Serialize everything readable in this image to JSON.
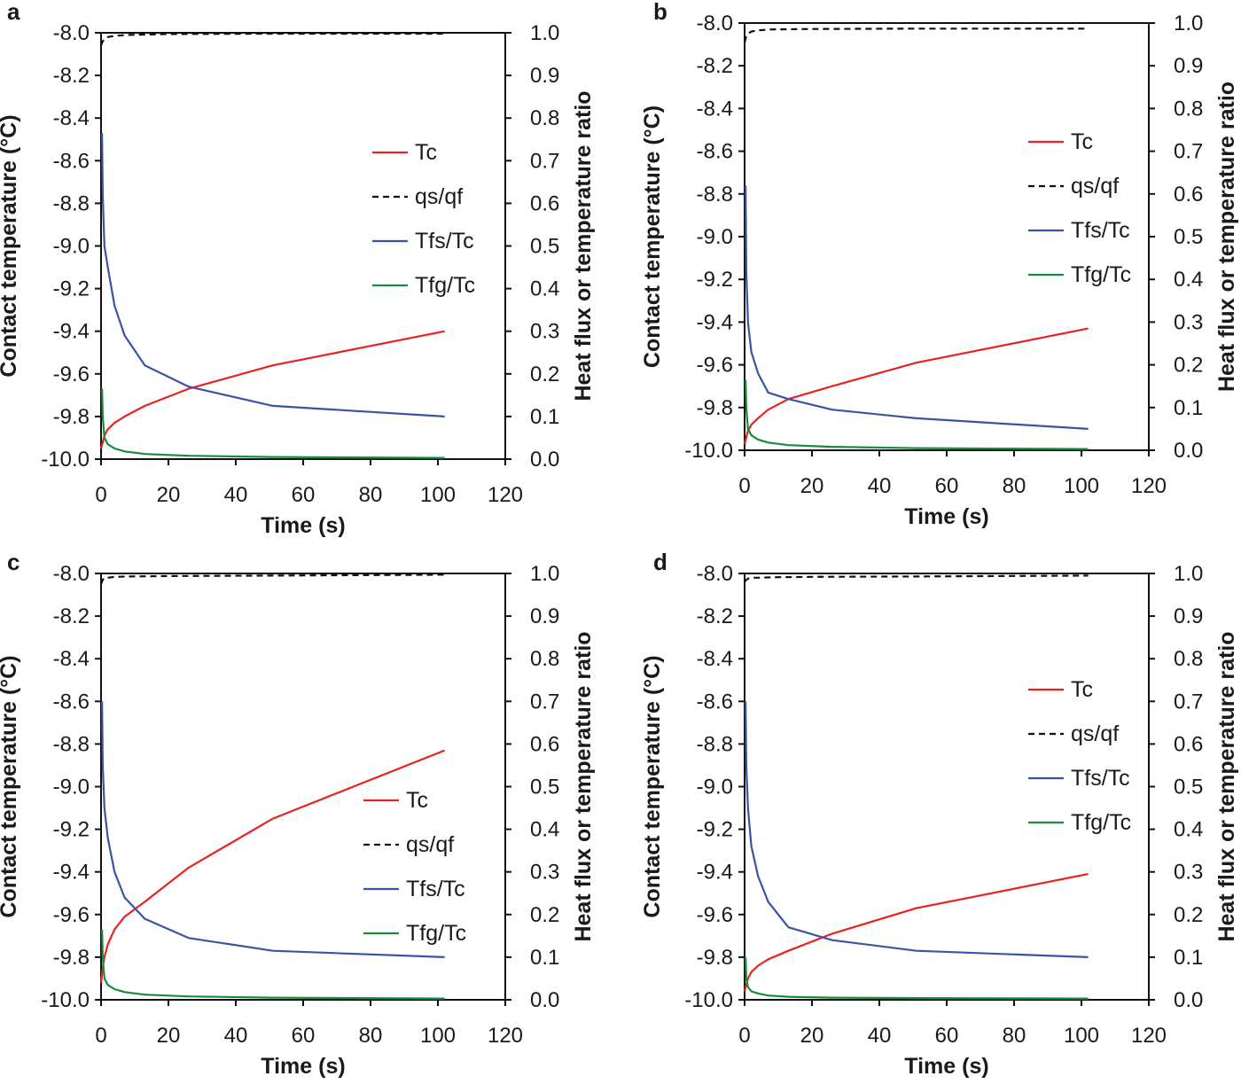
{
  "chart_data": [
    {
      "panel": "a",
      "type": "line",
      "xlabel": "Time (s)",
      "ylabel": "Contact temperature (°C)",
      "ylabel_right": "Heat flux or temperature ratio",
      "xlim": [
        0,
        120
      ],
      "ylim": [
        -10.0,
        -8.0
      ],
      "ylim_right": [
        0.0,
        1.0
      ],
      "xticks": [
        "0",
        "20",
        "40",
        "60",
        "80",
        "100",
        "120"
      ],
      "yticks": [
        "-8.0",
        "-8.2",
        "-8.4",
        "-8.6",
        "-8.8",
        "-9.0",
        "-9.2",
        "-9.4",
        "-9.6",
        "-9.8",
        "-10.0"
      ],
      "yticks_right": [
        "1.0",
        "0.9",
        "0.8",
        "0.7",
        "0.6",
        "0.5",
        "0.4",
        "0.3",
        "0.2",
        "0.1",
        "0.0"
      ],
      "legend": [
        "Tc",
        "qs/qf",
        "Tfs/Tc",
        "Tfg/Tc"
      ],
      "legend_position": "center-right",
      "series": [
        {
          "name": "Tc",
          "axis": "left",
          "color": "#e8231f",
          "dash": false,
          "x": [
            0,
            0.5,
            1,
            2,
            4,
            7,
            13,
            26,
            51,
            102
          ],
          "y": [
            -9.95,
            -9.92,
            -9.89,
            -9.86,
            -9.83,
            -9.8,
            -9.75,
            -9.67,
            -9.56,
            -9.4
          ]
        },
        {
          "name": "qs/qf",
          "axis": "right",
          "color": "#111111",
          "dash": true,
          "x": [
            0,
            0.5,
            1,
            2,
            4,
            8,
            20,
            50,
            102
          ],
          "y": [
            0.97,
            0.98,
            0.985,
            0.99,
            0.993,
            0.995,
            0.997,
            0.998,
            0.998
          ]
        },
        {
          "name": "Tfs/Tc",
          "axis": "right",
          "color": "#3a53a4",
          "dash": false,
          "x": [
            0.3,
            0.5,
            1,
            2,
            4,
            7,
            13,
            26,
            51,
            102
          ],
          "y": [
            0.765,
            0.62,
            0.5,
            0.45,
            0.36,
            0.29,
            0.22,
            0.17,
            0.125,
            0.1
          ]
        },
        {
          "name": "Tfg/Tc",
          "axis": "right",
          "color": "#1a8a3e",
          "dash": false,
          "x": [
            0.3,
            0.5,
            1,
            2,
            4,
            7,
            13,
            26,
            51,
            102
          ],
          "y": [
            0.165,
            0.1,
            0.05,
            0.035,
            0.025,
            0.018,
            0.012,
            0.008,
            0.005,
            0.003
          ]
        }
      ]
    },
    {
      "panel": "b",
      "type": "line",
      "xlabel": "Time (s)",
      "ylabel": "Contact temperature (°C)",
      "ylabel_right": "Heat flux or temperature ratio",
      "xlim": [
        0,
        120
      ],
      "ylim": [
        -10.0,
        -8.0
      ],
      "ylim_right": [
        0.0,
        1.0
      ],
      "xticks": [
        "0",
        "20",
        "40",
        "60",
        "80",
        "100",
        "120"
      ],
      "yticks": [
        "-8.0",
        "-8.2",
        "-8.4",
        "-8.6",
        "-8.8",
        "-9.0",
        "-9.2",
        "-9.4",
        "-9.6",
        "-9.8",
        "-10.0"
      ],
      "yticks_right": [
        "1.0",
        "0.9",
        "0.8",
        "0.7",
        "0.6",
        "0.5",
        "0.4",
        "0.3",
        "0.2",
        "0.1",
        "0.0"
      ],
      "legend": [
        "Tc",
        "qs/qf",
        "Tfs/Tc",
        "Tfg/Tc"
      ],
      "legend_position": "center-right",
      "series": [
        {
          "name": "Tc",
          "axis": "left",
          "color": "#e8231f",
          "dash": false,
          "x": [
            0,
            0.5,
            1,
            2,
            4,
            7,
            13,
            26,
            51,
            102
          ],
          "y": [
            -9.97,
            -9.94,
            -9.91,
            -9.88,
            -9.85,
            -9.81,
            -9.76,
            -9.7,
            -9.59,
            -9.43
          ]
        },
        {
          "name": "qs/qf",
          "axis": "right",
          "color": "#111111",
          "dash": true,
          "x": [
            0,
            0.5,
            1,
            2,
            4,
            8,
            20,
            50,
            102
          ],
          "y": [
            0.955,
            0.97,
            0.975,
            0.98,
            0.983,
            0.985,
            0.986,
            0.987,
            0.987
          ]
        },
        {
          "name": "Tfs/Tc",
          "axis": "right",
          "color": "#3a53a4",
          "dash": false,
          "x": [
            0.3,
            0.5,
            1,
            2,
            4,
            7,
            13,
            26,
            51,
            102
          ],
          "y": [
            0.62,
            0.42,
            0.3,
            0.23,
            0.18,
            0.135,
            0.12,
            0.095,
            0.075,
            0.05
          ]
        },
        {
          "name": "Tfg/Tc",
          "axis": "right",
          "color": "#1a8a3e",
          "dash": false,
          "x": [
            0.3,
            0.5,
            1,
            2,
            4,
            7,
            13,
            26,
            51,
            102
          ],
          "y": [
            0.165,
            0.1,
            0.05,
            0.035,
            0.025,
            0.018,
            0.012,
            0.008,
            0.005,
            0.003
          ]
        }
      ]
    },
    {
      "panel": "c",
      "type": "line",
      "xlabel": "Time (s)",
      "ylabel": "Contact temperature (°C)",
      "ylabel_right": "Heat flux or temperature ratio",
      "xlim": [
        0,
        120
      ],
      "ylim": [
        -10.0,
        -8.0
      ],
      "ylim_right": [
        0.0,
        1.0
      ],
      "xticks": [
        "0",
        "20",
        "40",
        "60",
        "80",
        "100",
        "120"
      ],
      "yticks": [
        "-8.0",
        "-8.2",
        "-8.4",
        "-8.6",
        "-8.8",
        "-9.0",
        "-9.2",
        "-9.4",
        "-9.6",
        "-9.8",
        "-10.0"
      ],
      "yticks_right": [
        "1.0",
        "0.9",
        "0.8",
        "0.7",
        "0.6",
        "0.5",
        "0.4",
        "0.3",
        "0.2",
        "0.1",
        "0.0"
      ],
      "legend": [
        "Tc",
        "qs/qf",
        "Tfs/Tc",
        "Tfg/Tc"
      ],
      "legend_position": "lower-right",
      "series": [
        {
          "name": "Tc",
          "axis": "left",
          "color": "#e8231f",
          "dash": false,
          "x": [
            0,
            0.5,
            1,
            2,
            4,
            7,
            13,
            26,
            51,
            102
          ],
          "y": [
            -9.92,
            -9.85,
            -9.8,
            -9.74,
            -9.67,
            -9.61,
            -9.54,
            -9.38,
            -9.15,
            -8.83
          ]
        },
        {
          "name": "qs/qf",
          "axis": "right",
          "color": "#111111",
          "dash": true,
          "x": [
            0,
            0.5,
            1,
            2,
            4,
            8,
            20,
            50,
            102
          ],
          "y": [
            0.975,
            0.985,
            0.99,
            0.99,
            0.992,
            0.993,
            0.994,
            0.995,
            0.997
          ]
        },
        {
          "name": "Tfs/Tc",
          "axis": "right",
          "color": "#3a53a4",
          "dash": false,
          "x": [
            0.3,
            0.5,
            1,
            2,
            4,
            7,
            13,
            26,
            51,
            102
          ],
          "y": [
            0.7,
            0.55,
            0.45,
            0.38,
            0.3,
            0.24,
            0.19,
            0.145,
            0.115,
            0.1
          ]
        },
        {
          "name": "Tfg/Tc",
          "axis": "right",
          "color": "#1a8a3e",
          "dash": false,
          "x": [
            0.3,
            0.5,
            1,
            2,
            4,
            7,
            13,
            26,
            51,
            102
          ],
          "y": [
            0.165,
            0.1,
            0.05,
            0.035,
            0.025,
            0.018,
            0.012,
            0.008,
            0.005,
            0.003
          ]
        }
      ]
    },
    {
      "panel": "d",
      "type": "line",
      "xlabel": "Time (s)",
      "ylabel": "Contact temperature (°C)",
      "ylabel_right": "Heat flux or temperature ratio",
      "xlim": [
        0,
        120
      ],
      "ylim": [
        -10.0,
        -8.0
      ],
      "ylim_right": [
        0.0,
        1.0
      ],
      "xticks": [
        "0",
        "20",
        "40",
        "60",
        "80",
        "100",
        "120"
      ],
      "yticks": [
        "-8.0",
        "-8.2",
        "-8.4",
        "-8.6",
        "-8.8",
        "-9.0",
        "-9.2",
        "-9.4",
        "-9.6",
        "-9.8",
        "-10.0"
      ],
      "yticks_right": [
        "1.0",
        "0.9",
        "0.8",
        "0.7",
        "0.6",
        "0.5",
        "0.4",
        "0.3",
        "0.2",
        "0.1",
        "0.0"
      ],
      "legend": [
        "Tc",
        "qs/qf",
        "Tfs/Tc",
        "Tfg/Tc"
      ],
      "legend_position": "center-right",
      "series": [
        {
          "name": "Tc",
          "axis": "left",
          "color": "#e8231f",
          "dash": false,
          "x": [
            0,
            0.5,
            1,
            2,
            4,
            7,
            13,
            26,
            51,
            102
          ],
          "y": [
            -9.96,
            -9.93,
            -9.9,
            -9.87,
            -9.84,
            -9.81,
            -9.77,
            -9.69,
            -9.57,
            -9.41
          ]
        },
        {
          "name": "qs/qf",
          "axis": "right",
          "color": "#111111",
          "dash": true,
          "x": [
            0,
            0.5,
            1,
            2,
            4,
            8,
            20,
            50,
            102
          ],
          "y": [
            0.98,
            0.985,
            0.988,
            0.99,
            0.99,
            0.991,
            0.992,
            0.993,
            0.995
          ]
        },
        {
          "name": "Tfs/Tc",
          "axis": "right",
          "color": "#3a53a4",
          "dash": false,
          "x": [
            0.3,
            0.5,
            1,
            2,
            4,
            7,
            13,
            26,
            51,
            102
          ],
          "y": [
            0.7,
            0.55,
            0.45,
            0.36,
            0.29,
            0.23,
            0.17,
            0.14,
            0.115,
            0.1
          ]
        },
        {
          "name": "Tfg/Tc",
          "axis": "right",
          "color": "#1a8a3e",
          "dash": false,
          "x": [
            0.3,
            0.5,
            1,
            2,
            4,
            7,
            13,
            26,
            51,
            102
          ],
          "y": [
            0.1,
            0.05,
            0.03,
            0.02,
            0.015,
            0.01,
            0.007,
            0.005,
            0.004,
            0.003
          ]
        }
      ]
    }
  ]
}
